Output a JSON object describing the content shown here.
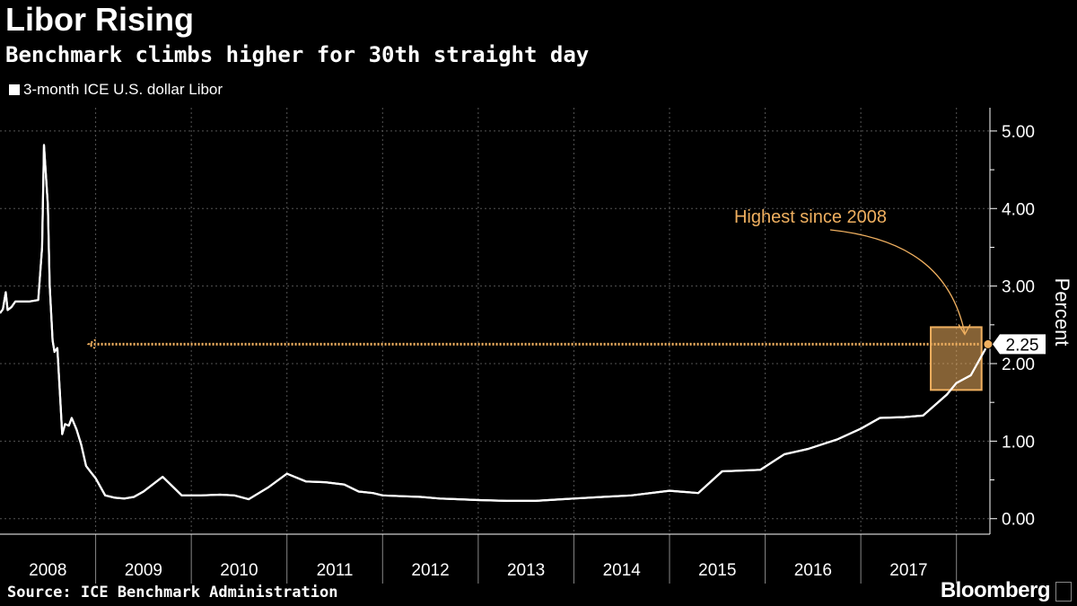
{
  "header": {
    "title": "Libor Rising",
    "subtitle": "Benchmark climbs higher for 30th straight day"
  },
  "legend": {
    "label": "3-month ICE U.S. dollar Libor"
  },
  "footer": {
    "source": "Source: ICE Benchmark Administration",
    "brand": "Bloomberg"
  },
  "colors": {
    "background": "#000000",
    "line": "#ffffff",
    "accent": "#f0b060",
    "grid": "#555555"
  },
  "chart_data": {
    "type": "line",
    "title": "Libor Rising",
    "subtitle": "Benchmark climbs higher for 30th straight day",
    "ylabel": "Percent",
    "ylim": [
      -0.2,
      5.3
    ],
    "yticks": [
      "0.00",
      "1.00",
      "2.00",
      "3.00",
      "4.00",
      "5.00"
    ],
    "y_axis_side": "right",
    "categories": [
      "2008",
      "2009",
      "2010",
      "2011",
      "2012",
      "2013",
      "2014",
      "2015",
      "2016",
      "2017"
    ],
    "xlim": [
      2008.0,
      2018.35
    ],
    "grid": true,
    "legend_position": "top-left",
    "series": [
      {
        "name": "3-month ICE U.S. dollar Libor",
        "x": [
          2008.0,
          2008.03,
          2008.06,
          2008.08,
          2008.12,
          2008.16,
          2008.2,
          2008.3,
          2008.4,
          2008.44,
          2008.46,
          2008.5,
          2008.52,
          2008.55,
          2008.57,
          2008.6,
          2008.63,
          2008.65,
          2008.68,
          2008.72,
          2008.75,
          2008.8,
          2008.85,
          2008.9,
          2008.95,
          2009.0,
          2009.1,
          2009.2,
          2009.3,
          2009.4,
          2009.5,
          2009.7,
          2009.9,
          2010.1,
          2010.3,
          2010.45,
          2010.6,
          2010.8,
          2011.0,
          2011.2,
          2011.4,
          2011.6,
          2011.75,
          2011.9,
          2012.0,
          2012.2,
          2012.4,
          2012.6,
          2012.8,
          2013.0,
          2013.3,
          2013.6,
          2014.0,
          2014.3,
          2014.6,
          2015.0,
          2015.3,
          2015.55,
          2015.75,
          2015.95,
          2016.2,
          2016.45,
          2016.75,
          2017.0,
          2017.2,
          2017.45,
          2017.65,
          2017.9,
          2018.0,
          2018.15,
          2018.33
        ],
        "values": [
          2.65,
          2.7,
          2.92,
          2.69,
          2.73,
          2.8,
          2.8,
          2.8,
          2.82,
          3.5,
          4.82,
          4.05,
          3.0,
          2.3,
          2.15,
          2.2,
          1.55,
          1.09,
          1.22,
          1.2,
          1.3,
          1.15,
          0.95,
          0.68,
          0.6,
          0.52,
          0.3,
          0.27,
          0.26,
          0.28,
          0.35,
          0.54,
          0.3,
          0.3,
          0.31,
          0.3,
          0.25,
          0.4,
          0.58,
          0.48,
          0.47,
          0.44,
          0.35,
          0.33,
          0.3,
          0.29,
          0.28,
          0.26,
          0.25,
          0.24,
          0.23,
          0.23,
          0.26,
          0.28,
          0.3,
          0.36,
          0.33,
          0.61,
          0.62,
          0.63,
          0.83,
          0.9,
          1.02,
          1.16,
          1.3,
          1.31,
          1.33,
          1.6,
          1.75,
          1.85,
          2.25
        ]
      }
    ],
    "annotations": [
      {
        "text": "Highest since 2008",
        "x": 2018.33,
        "y": 2.25
      },
      {
        "text": "2.25",
        "x": 2018.33,
        "y": 2.25
      }
    ],
    "reference_line": {
      "y": 2.25,
      "x_start": 2008.85,
      "x_end": 2018.33
    }
  }
}
